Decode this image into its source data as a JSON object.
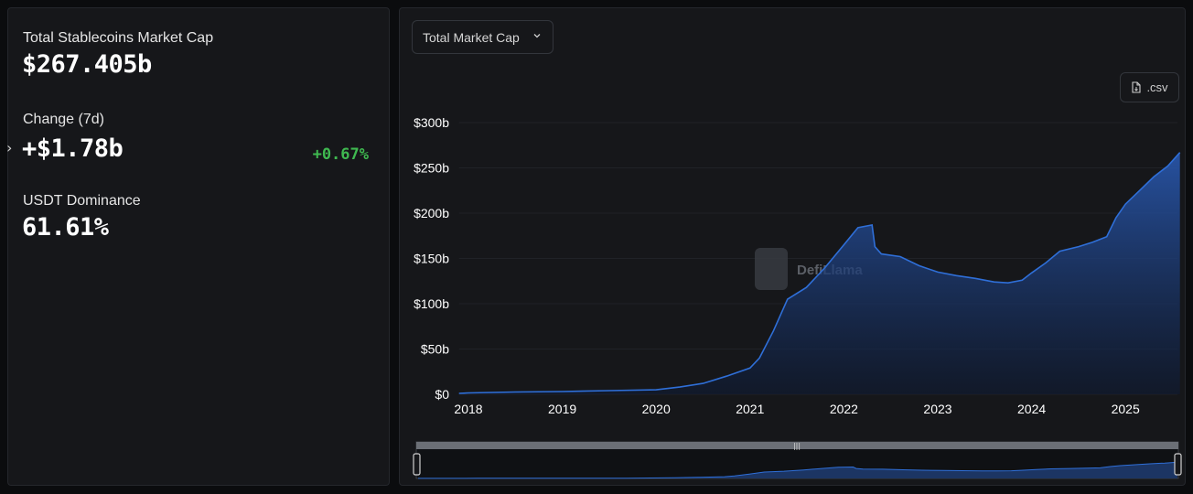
{
  "stats": {
    "total_label": "Total Stablecoins Market Cap",
    "total_value": "$267.405b",
    "change_label": "Change (7d)",
    "change_value": "+$1.78b",
    "change_pct": "+0.67%",
    "dominance_label": "USDT Dominance",
    "dominance_value": "61.61%"
  },
  "controls": {
    "metric_select": "Total Market Cap",
    "csv_label": ".csv"
  },
  "watermark": "DefiLlama",
  "colors": {
    "background": "#0b0c0e",
    "panel": "#16171a",
    "accent_line": "#2f6fd8",
    "positive": "#3fb950"
  },
  "chart_data": {
    "type": "area",
    "title": "",
    "xlabel": "",
    "ylabel": "",
    "ylim": [
      0,
      300
    ],
    "yticks": [
      "$0",
      "$50b",
      "$100b",
      "$150b",
      "$200b",
      "$250b",
      "$300b"
    ],
    "ytick_values": [
      0,
      50,
      100,
      150,
      200,
      250,
      300
    ],
    "xticks": [
      "2018",
      "2019",
      "2020",
      "2021",
      "2022",
      "2023",
      "2024",
      "2025"
    ],
    "xtick_values": [
      2018,
      2019,
      2020,
      2021,
      2022,
      2023,
      2024,
      2025
    ],
    "x": [
      2017.9,
      2018.0,
      2018.5,
      2019.0,
      2019.5,
      2020.0,
      2020.25,
      2020.5,
      2020.75,
      2021.0,
      2021.1,
      2021.25,
      2021.4,
      2021.6,
      2021.8,
      2022.0,
      2022.15,
      2022.3,
      2022.33,
      2022.4,
      2022.6,
      2022.8,
      2023.0,
      2023.2,
      2023.4,
      2023.6,
      2023.75,
      2023.9,
      2024.0,
      2024.15,
      2024.3,
      2024.5,
      2024.65,
      2024.8,
      2024.9,
      2025.0,
      2025.15,
      2025.3,
      2025.45,
      2025.58
    ],
    "y": [
      1,
      1.5,
      2.5,
      3,
      4,
      5,
      8,
      12,
      20,
      29,
      40,
      70,
      105,
      118,
      140,
      165,
      184,
      187,
      163,
      155,
      152,
      142,
      135,
      131,
      128,
      124,
      123,
      126,
      134,
      145,
      158,
      163,
      168,
      174,
      195,
      210,
      225,
      240,
      252,
      267
    ],
    "grid": true,
    "legend": "none"
  }
}
